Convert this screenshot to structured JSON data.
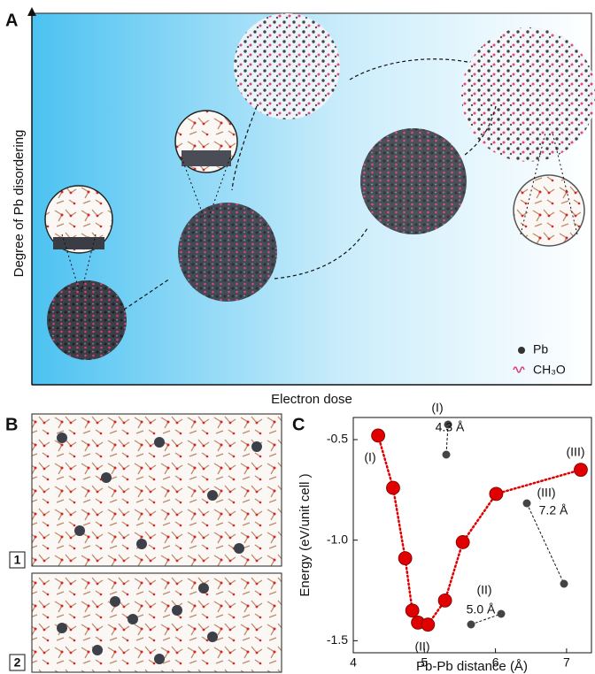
{
  "panel_a": {
    "label": "A",
    "y_axis_label": "Degree of Pb disordering",
    "x_axis_label": "Electron dose",
    "legend": [
      "Pb",
      "CH₃O"
    ]
  },
  "panel_b": {
    "label": "B",
    "frames": [
      "1",
      "2"
    ]
  },
  "chart_data": {
    "type": "line",
    "panel_label": "C",
    "x_label": "Pb-Pb distance (Å)",
    "y_label": "Energy (eV/unit cell )",
    "x": [
      4.35,
      4.56,
      4.73,
      4.83,
      4.91,
      5.05,
      5.29,
      5.54,
      6.01,
      7.2
    ],
    "values": [
      -0.48,
      -0.74,
      -1.09,
      -1.35,
      -1.41,
      -1.42,
      -1.3,
      -1.01,
      -0.77,
      -0.65
    ],
    "color": "#e00000",
    "xlim": [
      4,
      7.35
    ],
    "ylim": [
      -1.56,
      -0.39
    ],
    "xticks": [
      4,
      5,
      6,
      7
    ],
    "yticks": [
      -1.5,
      {
        "value": -1,
        "label": "-1.0"
      },
      -0.5
    ],
    "annotations": [
      "(I)",
      "(II)",
      "(III)",
      "(I)",
      "4.3 Å",
      "(III)",
      "7.2 Å",
      "(II)",
      "5.0 Å"
    ]
  }
}
